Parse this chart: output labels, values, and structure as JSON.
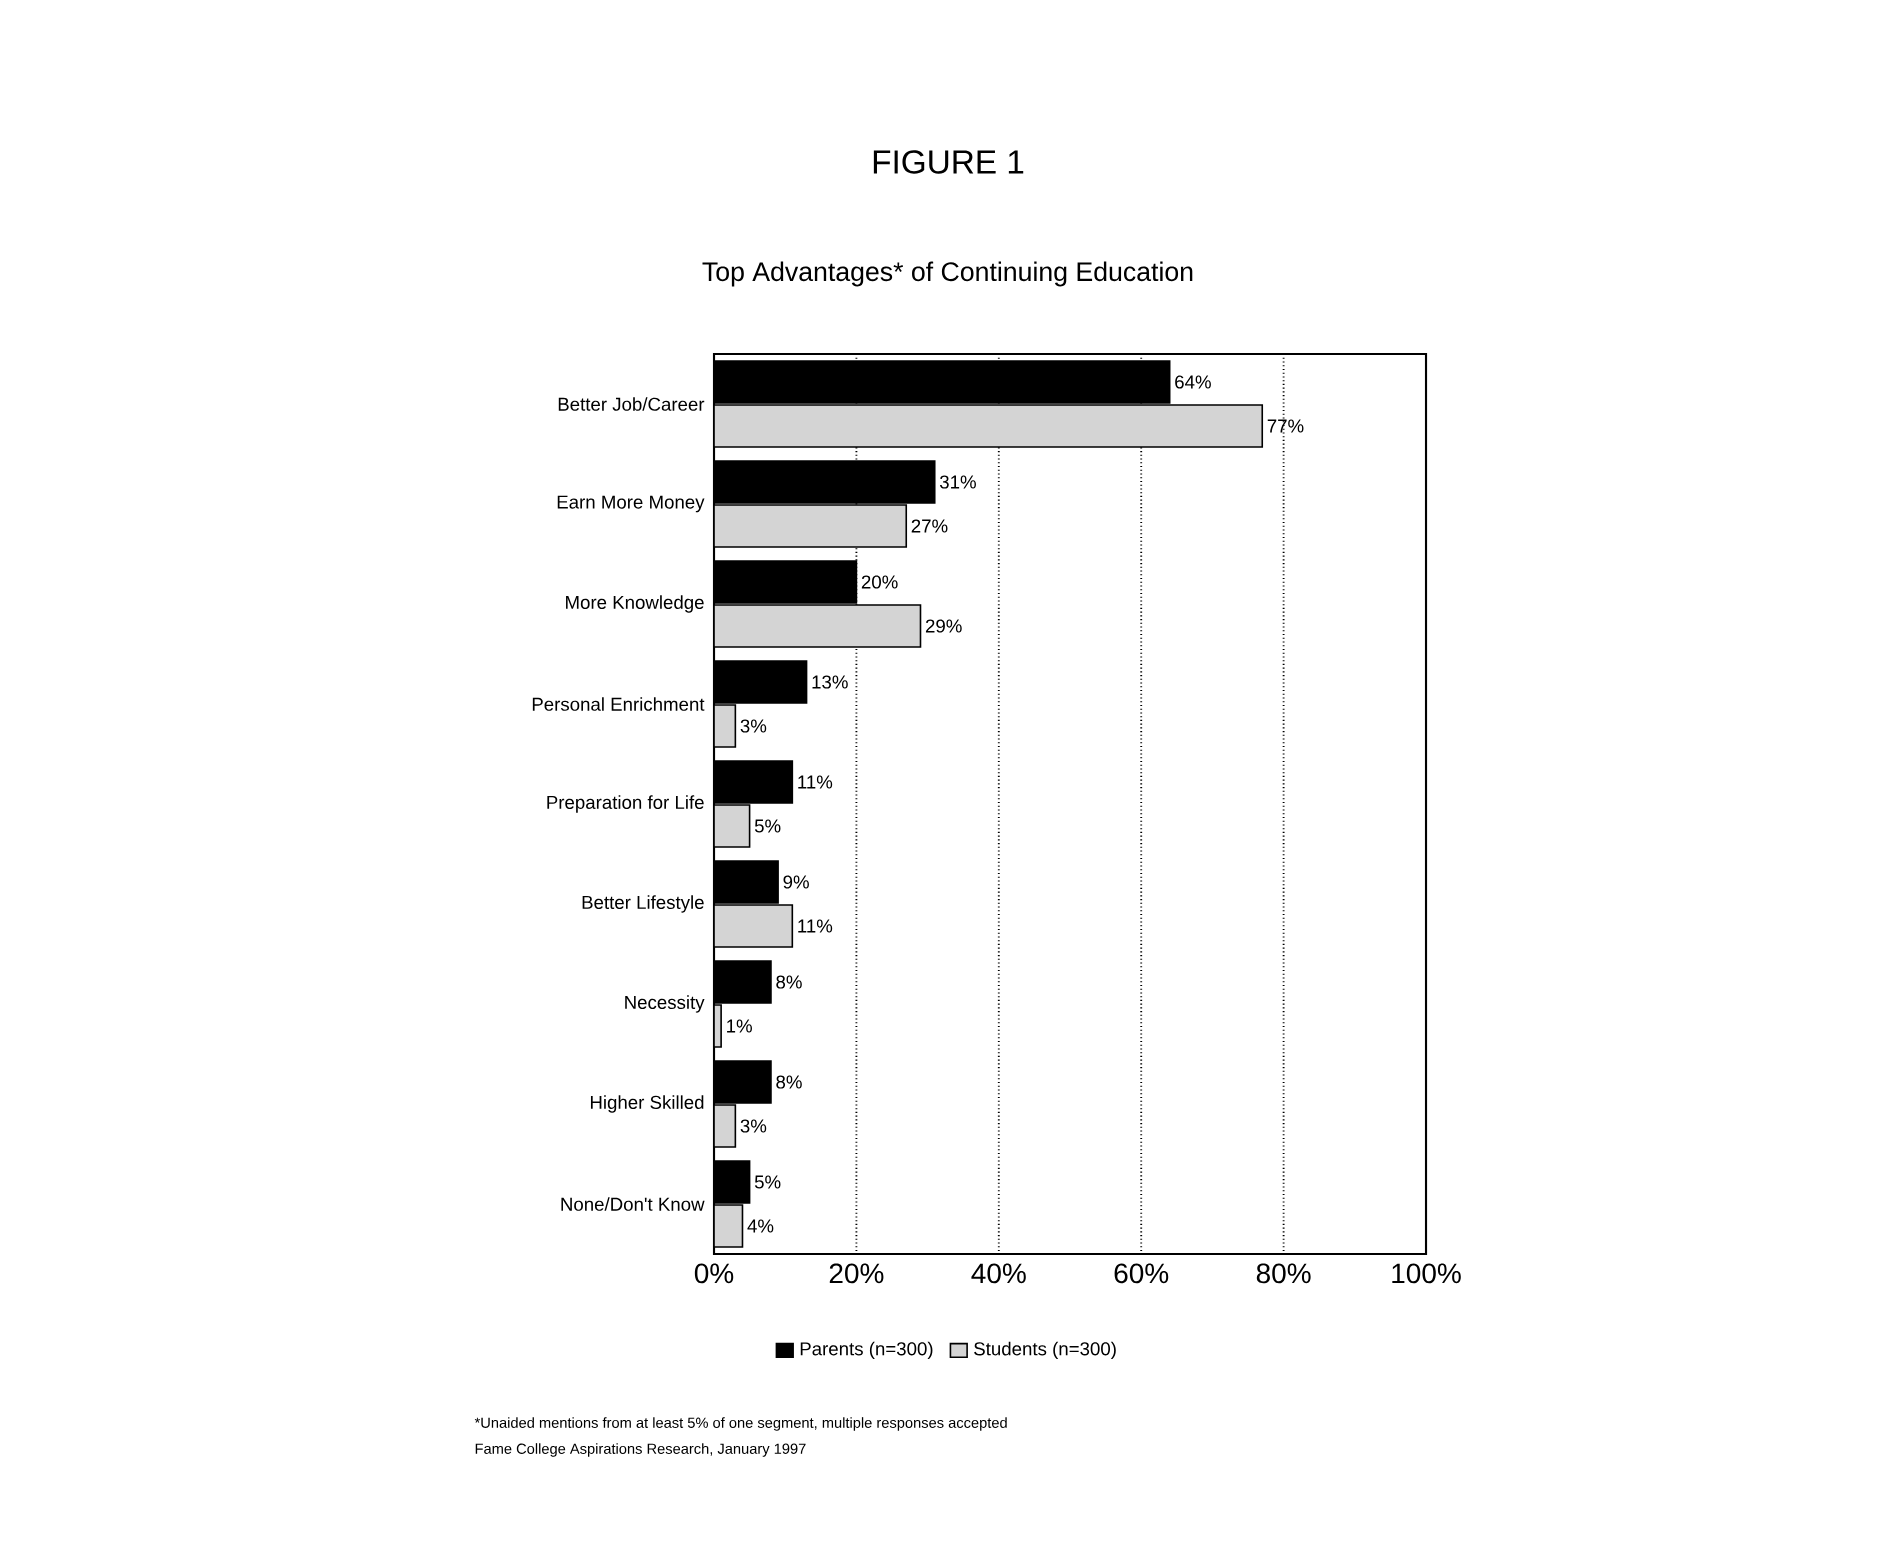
{
  "chart_data": {
    "type": "bar",
    "orientation": "horizontal",
    "title": "FIGURE 1",
    "subtitle": "Top Advantages* of Continuing Education",
    "categories": [
      "Better Job/Career",
      "Earn More Money",
      "More Knowledge",
      "Personal Enrichment",
      "Preparation for Life",
      "Better Lifestyle",
      "Necessity",
      "Higher Skilled",
      "None/Don't Know"
    ],
    "series": [
      {
        "name": "Parents (n=300)",
        "color": "#000000",
        "values": [
          64,
          31,
          20,
          13,
          11,
          9,
          8,
          8,
          5
        ],
        "value_labels": [
          "64%",
          "31%",
          "20%",
          "13%",
          "11%",
          "9%",
          "8%",
          "8%",
          "5%"
        ]
      },
      {
        "name": "Students (n=300)",
        "color": "#d4d4d4",
        "values": [
          77,
          27,
          29,
          3,
          5,
          11,
          1,
          3,
          4
        ],
        "value_labels": [
          "77%",
          "27%",
          "29%",
          "3%",
          "5%",
          "11%",
          "1%",
          "3%",
          "4%"
        ]
      }
    ],
    "xlim": [
      0,
      100
    ],
    "xticks": [
      {
        "value": 0,
        "label": "0%"
      },
      {
        "value": 20,
        "label": "20%"
      },
      {
        "value": 40,
        "label": "40%"
      },
      {
        "value": 60,
        "label": "60%"
      },
      {
        "value": 80,
        "label": "80%"
      },
      {
        "value": 100,
        "label": "100%"
      }
    ],
    "grid": "x",
    "legend": "bottom",
    "annotations": [
      "*Unaided mentions from at least 5% of one segment, multiple responses accepted",
      "Fame College Aspirations Research, January 1997"
    ]
  }
}
